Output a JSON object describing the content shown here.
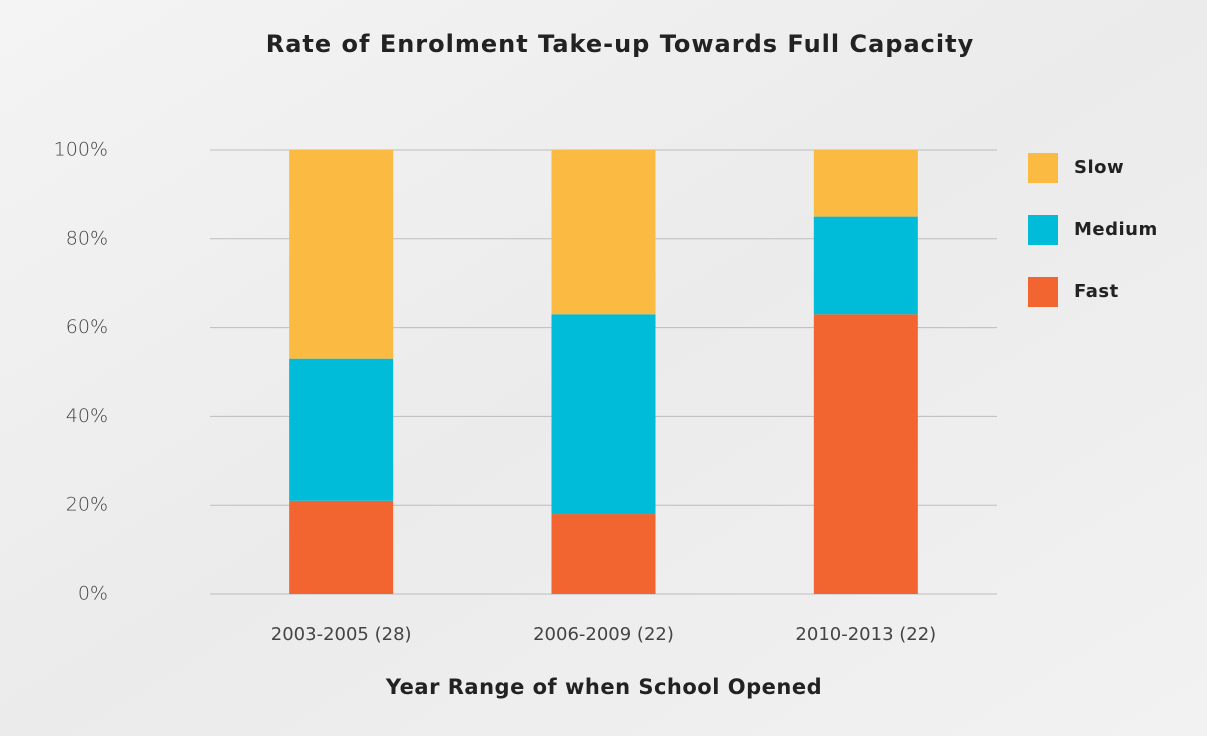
{
  "chart_data": {
    "type": "stacked_bar",
    "title": "Rate of Enrolment Take-up Towards Full Capacity",
    "x_label": "Year Range of when School Opened",
    "categories": [
      "2003-2005 (28)",
      "2006-2009 (22)",
      "2010-2013 (22)"
    ],
    "series": [
      {
        "name": "Fast",
        "color": "#f26430",
        "values": [
          21,
          18,
          63
        ]
      },
      {
        "name": "Medium",
        "color": "#00bcd8",
        "values": [
          32,
          45,
          22
        ]
      },
      {
        "name": "Slow",
        "color": "#fbbb42",
        "values": [
          47,
          37,
          15
        ]
      }
    ],
    "ylim": [
      0,
      100
    ],
    "yticks": [
      {
        "value": 0,
        "label": "0%"
      },
      {
        "value": 20,
        "label": "20%"
      },
      {
        "value": 40,
        "label": "40%"
      },
      {
        "value": 60,
        "label": "60%"
      },
      {
        "value": 80,
        "label": "80%"
      },
      {
        "value": 100,
        "label": "100%"
      }
    ],
    "grid": true,
    "legend": "right"
  }
}
